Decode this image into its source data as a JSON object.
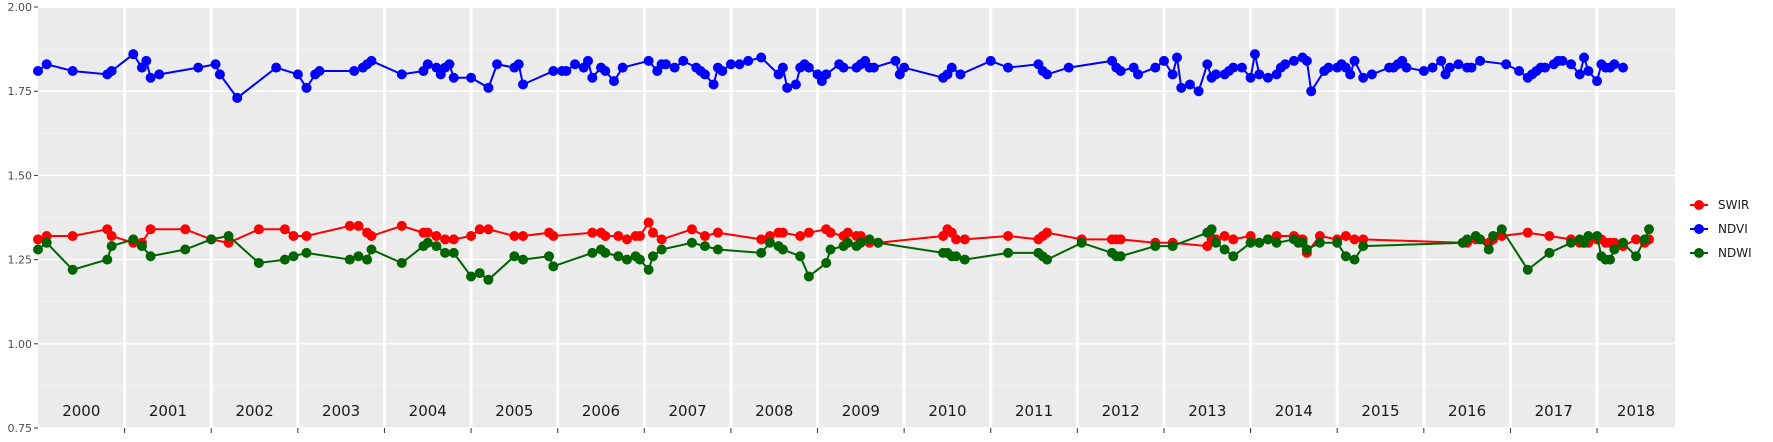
{
  "chart_data": {
    "type": "line",
    "title": "",
    "xlabel": "",
    "ylabel": "",
    "ylim": [
      0.75,
      2.0
    ],
    "yticks": [
      "0.75",
      "1.00",
      "1.25",
      "1.50",
      "1.75",
      "2.00"
    ],
    "xlim": [
      2000.0,
      2018.9
    ],
    "year_labels": [
      "2000",
      "2001",
      "2002",
      "2003",
      "2004",
      "2005",
      "2006",
      "2007",
      "2008",
      "2009",
      "2010",
      "2011",
      "2012",
      "2013",
      "2014",
      "2015",
      "2016",
      "2017",
      "2018"
    ],
    "grid": true,
    "legend_position": "right",
    "series": [
      {
        "name": "SWIR",
        "color": "#ff0000",
        "x": [
          2000.0,
          2000.1,
          2000.4,
          2000.8,
          2000.85,
          2001.1,
          2001.2,
          2001.3,
          2001.7,
          2002.0,
          2002.2,
          2002.55,
          2002.85,
          2002.95,
          2003.1,
          2003.6,
          2003.7,
          2003.8,
          2003.85,
          2004.2,
          2004.45,
          2004.5,
          2004.6,
          2004.7,
          2004.8,
          2005.0,
          2005.1,
          2005.2,
          2005.5,
          2005.6,
          2005.9,
          2005.95,
          2006.4,
          2006.5,
          2006.55,
          2006.7,
          2006.8,
          2006.9,
          2006.95,
          2007.05,
          2007.1,
          2007.2,
          2007.55,
          2007.7,
          2007.85,
          2008.35,
          2008.45,
          2008.55,
          2008.6,
          2008.8,
          2008.9,
          2009.1,
          2009.15,
          2009.3,
          2009.35,
          2009.45,
          2009.5,
          2009.6,
          2009.7,
          2010.45,
          2010.5,
          2010.55,
          2010.6,
          2010.7,
          2011.2,
          2011.55,
          2011.6,
          2011.65,
          2012.05,
          2012.4,
          2012.45,
          2012.5,
          2012.9,
          2013.1,
          2013.5,
          2013.55,
          2013.6,
          2013.7,
          2013.8,
          2014.0,
          2014.1,
          2014.2,
          2014.3,
          2014.5,
          2014.55,
          2014.6,
          2014.65,
          2014.8,
          2015.0,
          2015.1,
          2015.2,
          2015.3,
          2016.45,
          2016.5,
          2016.6,
          2016.65,
          2016.75,
          2016.8,
          2016.9,
          2017.2,
          2017.45,
          2017.7,
          2017.8,
          2017.85,
          2017.9,
          2018.0,
          2018.05,
          2018.1,
          2018.15,
          2018.2,
          2018.3,
          2018.45,
          2018.55,
          2018.6
        ],
        "y": [
          1.31,
          1.32,
          1.32,
          1.34,
          1.32,
          1.3,
          1.3,
          1.34,
          1.34,
          1.31,
          1.3,
          1.34,
          1.34,
          1.32,
          1.32,
          1.35,
          1.35,
          1.33,
          1.32,
          1.35,
          1.33,
          1.33,
          1.32,
          1.31,
          1.31,
          1.32,
          1.34,
          1.34,
          1.32,
          1.32,
          1.33,
          1.32,
          1.33,
          1.33,
          1.32,
          1.32,
          1.31,
          1.32,
          1.32,
          1.36,
          1.33,
          1.31,
          1.34,
          1.32,
          1.33,
          1.31,
          1.32,
          1.33,
          1.33,
          1.32,
          1.33,
          1.34,
          1.33,
          1.32,
          1.33,
          1.32,
          1.32,
          1.3,
          1.3,
          1.32,
          1.34,
          1.33,
          1.31,
          1.31,
          1.32,
          1.31,
          1.32,
          1.33,
          1.31,
          1.31,
          1.31,
          1.31,
          1.3,
          1.3,
          1.29,
          1.31,
          1.31,
          1.32,
          1.31,
          1.32,
          1.3,
          1.31,
          1.32,
          1.32,
          1.31,
          1.31,
          1.27,
          1.32,
          1.31,
          1.32,
          1.31,
          1.31,
          1.3,
          1.3,
          1.31,
          1.31,
          1.3,
          1.31,
          1.32,
          1.33,
          1.32,
          1.31,
          1.3,
          1.3,
          1.3,
          1.31,
          1.31,
          1.3,
          1.3,
          1.3,
          1.29,
          1.31,
          1.3,
          1.31
        ]
      },
      {
        "name": "NDVI",
        "color": "#0000ff",
        "x": [
          2000.0,
          2000.1,
          2000.4,
          2000.8,
          2000.85,
          2001.1,
          2001.2,
          2001.25,
          2001.3,
          2001.4,
          2001.85,
          2002.05,
          2002.1,
          2002.3,
          2002.75,
          2003.0,
          2003.1,
          2003.2,
          2003.25,
          2003.65,
          2003.75,
          2003.8,
          2003.85,
          2004.2,
          2004.45,
          2004.5,
          2004.6,
          2004.65,
          2004.7,
          2004.75,
          2004.8,
          2005.0,
          2005.2,
          2005.3,
          2005.5,
          2005.55,
          2005.6,
          2005.95,
          2006.05,
          2006.1,
          2006.2,
          2006.3,
          2006.35,
          2006.4,
          2006.5,
          2006.55,
          2006.65,
          2006.75,
          2007.05,
          2007.15,
          2007.2,
          2007.25,
          2007.35,
          2007.45,
          2007.6,
          2007.65,
          2007.7,
          2007.8,
          2007.85,
          2007.9,
          2008.0,
          2008.1,
          2008.2,
          2008.35,
          2008.55,
          2008.6,
          2008.65,
          2008.75,
          2008.8,
          2008.85,
          2008.9,
          2009.0,
          2009.05,
          2009.1,
          2009.25,
          2009.3,
          2009.45,
          2009.5,
          2009.55,
          2009.6,
          2009.65,
          2009.9,
          2009.95,
          2010.0,
          2010.45,
          2010.5,
          2010.55,
          2010.65,
          2011.0,
          2011.2,
          2011.55,
          2011.6,
          2011.65,
          2011.9,
          2012.4,
          2012.45,
          2012.5,
          2012.65,
          2012.7,
          2012.9,
          2013.0,
          2013.1,
          2013.15,
          2013.2,
          2013.3,
          2013.4,
          2013.5,
          2013.55,
          2013.6,
          2013.7,
          2013.75,
          2013.8,
          2013.9,
          2014.0,
          2014.05,
          2014.1,
          2014.2,
          2014.3,
          2014.35,
          2014.4,
          2014.5,
          2014.6,
          2014.65,
          2014.7,
          2014.85,
          2014.9,
          2015.0,
          2015.05,
          2015.1,
          2015.15,
          2015.2,
          2015.3,
          2015.4,
          2015.6,
          2015.65,
          2015.7,
          2015.75,
          2015.8,
          2016.0,
          2016.1,
          2016.2,
          2016.25,
          2016.3,
          2016.4,
          2016.5,
          2016.55,
          2016.65,
          2016.95,
          2017.1,
          2017.2,
          2017.25,
          2017.3,
          2017.35,
          2017.4,
          2017.5,
          2017.55,
          2017.6,
          2017.7,
          2017.8,
          2017.85,
          2017.9,
          2018.0,
          2018.05,
          2018.1,
          2018.15,
          2018.2,
          2018.3
        ],
        "y": [
          1.81,
          1.83,
          1.81,
          1.8,
          1.81,
          1.86,
          1.82,
          1.84,
          1.79,
          1.8,
          1.82,
          1.83,
          1.8,
          1.73,
          1.82,
          1.8,
          1.76,
          1.8,
          1.81,
          1.81,
          1.82,
          1.83,
          1.84,
          1.8,
          1.81,
          1.83,
          1.82,
          1.8,
          1.82,
          1.83,
          1.79,
          1.79,
          1.76,
          1.83,
          1.82,
          1.83,
          1.77,
          1.81,
          1.81,
          1.81,
          1.83,
          1.82,
          1.84,
          1.79,
          1.82,
          1.81,
          1.78,
          1.82,
          1.84,
          1.81,
          1.83,
          1.83,
          1.82,
          1.84,
          1.82,
          1.81,
          1.8,
          1.77,
          1.82,
          1.81,
          1.83,
          1.83,
          1.84,
          1.85,
          1.8,
          1.82,
          1.76,
          1.77,
          1.82,
          1.83,
          1.82,
          1.8,
          1.78,
          1.8,
          1.83,
          1.82,
          1.82,
          1.83,
          1.84,
          1.82,
          1.82,
          1.84,
          1.8,
          1.82,
          1.79,
          1.8,
          1.82,
          1.8,
          1.84,
          1.82,
          1.83,
          1.81,
          1.8,
          1.82,
          1.84,
          1.82,
          1.81,
          1.82,
          1.8,
          1.82,
          1.84,
          1.8,
          1.85,
          1.76,
          1.77,
          1.75,
          1.83,
          1.79,
          1.8,
          1.8,
          1.81,
          1.82,
          1.82,
          1.79,
          1.86,
          1.8,
          1.79,
          1.8,
          1.82,
          1.83,
          1.84,
          1.85,
          1.84,
          1.75,
          1.81,
          1.82,
          1.82,
          1.83,
          1.82,
          1.8,
          1.84,
          1.79,
          1.8,
          1.82,
          1.82,
          1.83,
          1.84,
          1.82,
          1.81,
          1.82,
          1.84,
          1.8,
          1.82,
          1.83,
          1.82,
          1.82,
          1.84,
          1.83,
          1.81,
          1.79,
          1.8,
          1.81,
          1.82,
          1.82,
          1.83,
          1.84,
          1.84,
          1.83,
          1.8,
          1.85,
          1.81,
          1.78,
          1.83,
          1.82,
          1.82,
          1.83,
          1.82
        ]
      },
      {
        "name": "NDWI",
        "color": "#006400",
        "x": [
          2000.0,
          2000.1,
          2000.4,
          2000.8,
          2000.85,
          2001.1,
          2001.2,
          2001.3,
          2001.7,
          2002.0,
          2002.2,
          2002.55,
          2002.85,
          2002.95,
          2003.1,
          2003.6,
          2003.7,
          2003.8,
          2003.85,
          2004.2,
          2004.45,
          2004.5,
          2004.6,
          2004.7,
          2004.8,
          2005.0,
          2005.1,
          2005.2,
          2005.5,
          2005.6,
          2005.9,
          2005.95,
          2006.4,
          2006.5,
          2006.55,
          2006.7,
          2006.8,
          2006.9,
          2006.95,
          2007.05,
          2007.1,
          2007.2,
          2007.55,
          2007.7,
          2007.85,
          2008.35,
          2008.45,
          2008.55,
          2008.6,
          2008.8,
          2008.9,
          2009.1,
          2009.15,
          2009.3,
          2009.35,
          2009.45,
          2009.5,
          2009.6,
          2009.7,
          2010.45,
          2010.5,
          2010.55,
          2010.6,
          2010.7,
          2011.2,
          2011.55,
          2011.6,
          2011.65,
          2012.05,
          2012.4,
          2012.45,
          2012.5,
          2012.9,
          2013.1,
          2013.5,
          2013.55,
          2013.6,
          2013.7,
          2013.8,
          2014.0,
          2014.1,
          2014.2,
          2014.3,
          2014.5,
          2014.55,
          2014.6,
          2014.65,
          2014.8,
          2015.0,
          2015.1,
          2015.2,
          2015.3,
          2016.45,
          2016.5,
          2016.6,
          2016.65,
          2016.75,
          2016.8,
          2016.9,
          2017.2,
          2017.45,
          2017.7,
          2017.8,
          2017.85,
          2017.9,
          2018.0,
          2018.05,
          2018.1,
          2018.15,
          2018.2,
          2018.3,
          2018.45,
          2018.55,
          2018.6
        ],
        "y": [
          1.28,
          1.3,
          1.22,
          1.25,
          1.29,
          1.31,
          1.29,
          1.26,
          1.28,
          1.31,
          1.32,
          1.24,
          1.25,
          1.26,
          1.27,
          1.25,
          1.26,
          1.25,
          1.28,
          1.24,
          1.29,
          1.3,
          1.29,
          1.27,
          1.27,
          1.2,
          1.21,
          1.19,
          1.26,
          1.25,
          1.26,
          1.23,
          1.27,
          1.28,
          1.27,
          1.26,
          1.25,
          1.26,
          1.25,
          1.22,
          1.26,
          1.28,
          1.3,
          1.29,
          1.28,
          1.27,
          1.3,
          1.29,
          1.28,
          1.26,
          1.2,
          1.24,
          1.28,
          1.29,
          1.3,
          1.29,
          1.3,
          1.31,
          1.3,
          1.27,
          1.27,
          1.26,
          1.26,
          1.25,
          1.27,
          1.27,
          1.26,
          1.25,
          1.3,
          1.27,
          1.26,
          1.26,
          1.29,
          1.29,
          1.33,
          1.34,
          1.3,
          1.28,
          1.26,
          1.3,
          1.3,
          1.31,
          1.3,
          1.31,
          1.3,
          1.3,
          1.28,
          1.3,
          1.3,
          1.26,
          1.25,
          1.29,
          1.3,
          1.31,
          1.32,
          1.31,
          1.28,
          1.32,
          1.34,
          1.22,
          1.27,
          1.3,
          1.31,
          1.3,
          1.32,
          1.32,
          1.26,
          1.25,
          1.25,
          1.28,
          1.3,
          1.26,
          1.31,
          1.34
        ]
      }
    ]
  }
}
